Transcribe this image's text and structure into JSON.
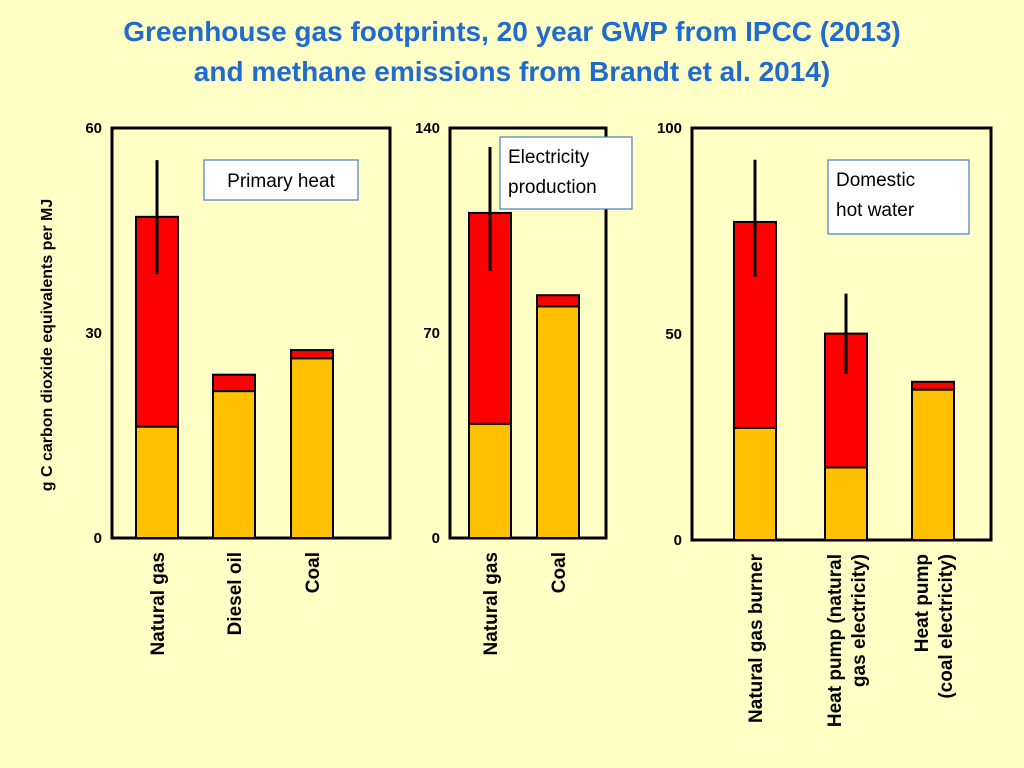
{
  "title_lines": [
    "Greenhouse gas footprints, 20 year GWP from IPCC (2013)",
    "and methane emissions from Brandt et al. 2014)"
  ],
  "colors": {
    "background": "#ffffc6",
    "title": "#1f6bd1",
    "base_segment": "#ffc000",
    "top_segment": "#ff0000",
    "label_box_border": "#4a7ac8"
  },
  "chart_data": {
    "type": "bar",
    "stacked": true,
    "ylabel": "g C carbon dioxide equivalents per MJ",
    "panels": [
      {
        "label": "Primary heat",
        "ylim": [
          0,
          60
        ],
        "yticks": [
          "0",
          "30",
          "60"
        ],
        "categories": [
          [
            "Natural gas"
          ],
          [
            "Diesel oil"
          ],
          [
            "Coal"
          ]
        ],
        "base": [
          16.3,
          21.5,
          26.3
        ],
        "top": [
          30.7,
          2.4,
          1.2
        ],
        "error": [
          [
            38.6,
            55.3
          ],
          null,
          null
        ]
      },
      {
        "label": "Electricity production",
        "label_lines": [
          "Electricity",
          "production"
        ],
        "ylim": [
          0,
          140
        ],
        "yticks": [
          "0",
          "70",
          "140"
        ],
        "categories": [
          [
            "Natural gas"
          ],
          [
            "Coal"
          ]
        ],
        "base": [
          39.0,
          79.1
        ],
        "top": [
          72.0,
          3.8
        ],
        "error": [
          [
            91.2,
            133.5
          ],
          null
        ]
      },
      {
        "label": "Domestic hot water",
        "label_lines": [
          "Domestic",
          "hot water"
        ],
        "ylim": [
          0,
          100
        ],
        "yticks": [
          "0",
          "50",
          "100"
        ],
        "categories": [
          [
            "Natural gas burner"
          ],
          [
            "Heat pump (natural",
            "gas electricity)"
          ],
          [
            "Heat pump",
            "(coal  electricity)"
          ]
        ],
        "base": [
          27.2,
          17.6,
          36.5
        ],
        "top": [
          50.0,
          32.5,
          1.9
        ],
        "error": [
          [
            63.9,
            92.3
          ],
          [
            40.3,
            59.8
          ],
          null
        ]
      }
    ]
  }
}
